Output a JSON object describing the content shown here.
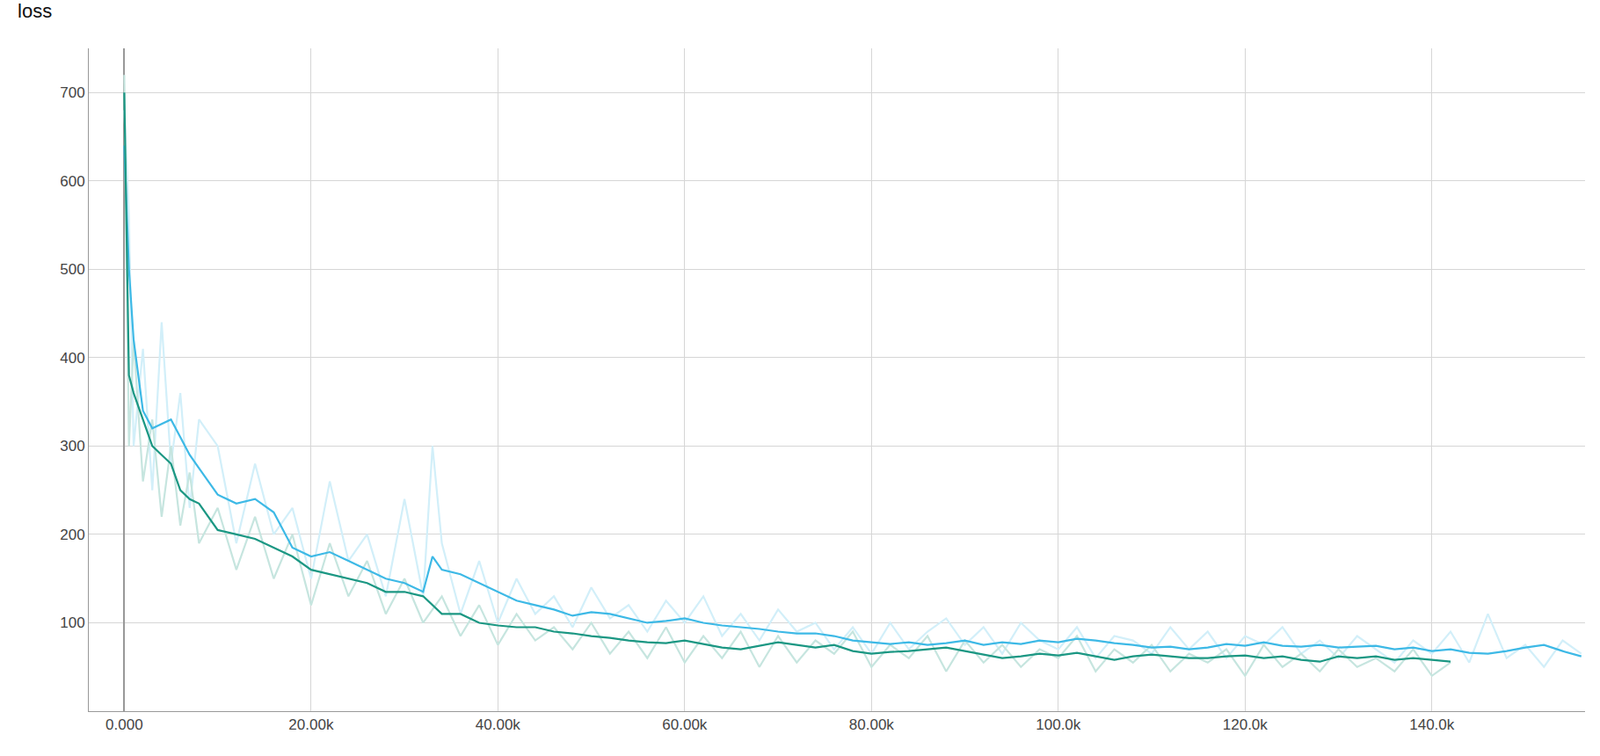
{
  "chart_data": {
    "type": "line",
    "title": "loss",
    "xlim": [
      -3800,
      156400
    ],
    "ylim": [
      0,
      750
    ],
    "xticks": [
      {
        "value": 0,
        "label": "0.000"
      },
      {
        "value": 20000,
        "label": "20.00k"
      },
      {
        "value": 40000,
        "label": "40.00k"
      },
      {
        "value": 60000,
        "label": "60.00k"
      },
      {
        "value": 80000,
        "label": "80.00k"
      },
      {
        "value": 100000,
        "label": "100.0k"
      },
      {
        "value": 120000,
        "label": "120.0k"
      },
      {
        "value": 140000,
        "label": "140.0k"
      }
    ],
    "yticks": [
      100,
      200,
      300,
      400,
      500,
      600,
      700
    ],
    "grid": true,
    "series": [
      {
        "color": "#d2eff9",
        "x": [
          0,
          500,
          1000,
          2000,
          3000,
          4000,
          5000,
          6000,
          7000,
          8000,
          10000,
          12000,
          14000,
          16000,
          18000,
          20000,
          22000,
          24000,
          26000,
          28000,
          30000,
          32000,
          33000,
          34000,
          36000,
          38000,
          40000,
          42000,
          44000,
          46000,
          48000,
          50000,
          52000,
          54000,
          56000,
          58000,
          60000,
          62000,
          64000,
          66000,
          68000,
          70000,
          72000,
          74000,
          76000,
          78000,
          80000,
          82000,
          84000,
          86000,
          88000,
          90000,
          92000,
          94000,
          96000,
          98000,
          100000,
          102000,
          104000,
          106000,
          108000,
          110000,
          112000,
          114000,
          116000,
          118000,
          120000,
          122000,
          124000,
          126000,
          128000,
          130000,
          132000,
          134000,
          136000,
          138000,
          140000,
          142000,
          144000,
          146000,
          148000,
          150000,
          152000,
          154000,
          156000
        ],
        "values": [
          680,
          560,
          300,
          410,
          250,
          440,
          280,
          360,
          230,
          330,
          300,
          190,
          280,
          200,
          230,
          150,
          260,
          170,
          200,
          130,
          240,
          130,
          300,
          190,
          110,
          170,
          100,
          150,
          110,
          130,
          95,
          140,
          105,
          120,
          90,
          125,
          100,
          130,
          85,
          110,
          80,
          115,
          90,
          100,
          70,
          95,
          65,
          100,
          70,
          90,
          105,
          75,
          95,
          65,
          100,
          80,
          70,
          95,
          60,
          85,
          80,
          65,
          95,
          70,
          90,
          60,
          85,
          75,
          95,
          65,
          80,
          60,
          85,
          70,
          55,
          80,
          65,
          90,
          55,
          110,
          60,
          75,
          50,
          80,
          65
        ]
      },
      {
        "color": "#c6e5df",
        "x": [
          0,
          500,
          1000,
          2000,
          3000,
          4000,
          5000,
          6000,
          7000,
          8000,
          10000,
          12000,
          14000,
          16000,
          18000,
          20000,
          22000,
          24000,
          26000,
          28000,
          30000,
          32000,
          34000,
          36000,
          38000,
          40000,
          42000,
          44000,
          46000,
          48000,
          50000,
          52000,
          54000,
          56000,
          58000,
          60000,
          62000,
          64000,
          66000,
          68000,
          70000,
          72000,
          74000,
          76000,
          78000,
          80000,
          82000,
          84000,
          86000,
          88000,
          90000,
          92000,
          94000,
          96000,
          98000,
          100000,
          102000,
          104000,
          106000,
          108000,
          110000,
          112000,
          114000,
          116000,
          118000,
          120000,
          122000,
          124000,
          126000,
          128000,
          130000,
          132000,
          134000,
          136000,
          138000,
          140000,
          142000
        ],
        "values": [
          720,
          300,
          420,
          260,
          330,
          220,
          300,
          210,
          270,
          190,
          230,
          160,
          220,
          150,
          200,
          120,
          190,
          130,
          170,
          110,
          150,
          100,
          130,
          85,
          120,
          75,
          110,
          80,
          95,
          70,
          100,
          65,
          90,
          60,
          95,
          55,
          85,
          60,
          90,
          50,
          85,
          55,
          80,
          65,
          90,
          50,
          75,
          60,
          85,
          45,
          80,
          55,
          75,
          50,
          70,
          60,
          85,
          45,
          70,
          55,
          75,
          45,
          65,
          55,
          70,
          40,
          75,
          50,
          65,
          45,
          70,
          50,
          60,
          45,
          70,
          40,
          55
        ]
      },
      {
        "color": "#3db9e6",
        "x": [
          0,
          500,
          1000,
          2000,
          3000,
          4000,
          5000,
          6000,
          7000,
          8000,
          10000,
          12000,
          14000,
          16000,
          18000,
          20000,
          22000,
          24000,
          26000,
          28000,
          30000,
          32000,
          33000,
          34000,
          36000,
          38000,
          40000,
          42000,
          44000,
          46000,
          48000,
          50000,
          52000,
          54000,
          56000,
          58000,
          60000,
          62000,
          64000,
          66000,
          68000,
          70000,
          72000,
          74000,
          76000,
          78000,
          80000,
          82000,
          84000,
          86000,
          88000,
          90000,
          92000,
          94000,
          96000,
          98000,
          100000,
          102000,
          104000,
          106000,
          108000,
          110000,
          112000,
          114000,
          116000,
          118000,
          120000,
          122000,
          124000,
          126000,
          128000,
          130000,
          132000,
          134000,
          136000,
          138000,
          140000,
          142000,
          144000,
          146000,
          148000,
          150000,
          152000,
          154000,
          156000
        ],
        "values": [
          640,
          500,
          420,
          340,
          320,
          325,
          330,
          310,
          290,
          275,
          245,
          235,
          240,
          225,
          185,
          175,
          180,
          170,
          160,
          150,
          145,
          135,
          175,
          160,
          155,
          145,
          135,
          125,
          120,
          115,
          108,
          112,
          110,
          105,
          100,
          102,
          105,
          100,
          97,
          95,
          93,
          90,
          88,
          88,
          85,
          80,
          78,
          76,
          78,
          75,
          77,
          80,
          75,
          78,
          76,
          80,
          78,
          82,
          80,
          77,
          75,
          72,
          73,
          70,
          72,
          76,
          74,
          78,
          74,
          73,
          75,
          72,
          73,
          74,
          70,
          72,
          68,
          70,
          66,
          65,
          68,
          72,
          75,
          68,
          62
        ]
      },
      {
        "color": "#1b9783",
        "x": [
          0,
          500,
          1000,
          2000,
          3000,
          4000,
          5000,
          6000,
          7000,
          8000,
          10000,
          12000,
          14000,
          16000,
          18000,
          20000,
          22000,
          24000,
          26000,
          28000,
          30000,
          32000,
          34000,
          36000,
          38000,
          40000,
          42000,
          44000,
          46000,
          48000,
          50000,
          52000,
          54000,
          56000,
          58000,
          60000,
          62000,
          64000,
          66000,
          68000,
          70000,
          72000,
          74000,
          76000,
          78000,
          80000,
          82000,
          84000,
          86000,
          88000,
          90000,
          92000,
          94000,
          96000,
          98000,
          100000,
          102000,
          104000,
          106000,
          108000,
          110000,
          112000,
          114000,
          116000,
          118000,
          120000,
          122000,
          124000,
          126000,
          128000,
          130000,
          132000,
          134000,
          136000,
          138000,
          140000,
          142000
        ],
        "values": [
          700,
          380,
          360,
          330,
          300,
          290,
          280,
          250,
          240,
          235,
          205,
          200,
          195,
          185,
          175,
          160,
          155,
          150,
          145,
          135,
          135,
          130,
          110,
          110,
          100,
          97,
          95,
          95,
          90,
          88,
          85,
          83,
          80,
          78,
          77,
          80,
          76,
          72,
          70,
          74,
          78,
          75,
          72,
          75,
          68,
          65,
          67,
          68,
          70,
          72,
          68,
          64,
          60,
          62,
          65,
          63,
          66,
          62,
          58,
          62,
          64,
          62,
          60,
          60,
          62,
          63,
          60,
          62,
          58,
          56,
          62,
          60,
          62,
          58,
          60,
          58,
          56
        ]
      }
    ]
  }
}
